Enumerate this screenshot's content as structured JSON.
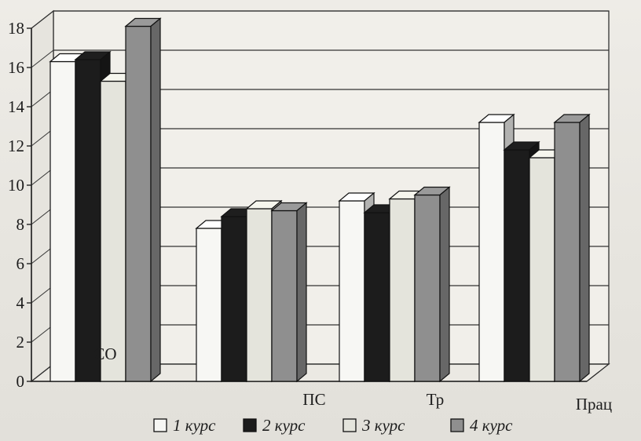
{
  "chart_data": {
    "type": "bar",
    "categories": [
      "СО",
      "ПС",
      "Тр",
      "Прац"
    ],
    "series": [
      {
        "name": "1 курс",
        "values": [
          16.3,
          7.8,
          9.2,
          13.2
        ],
        "color": "#f7f7f4"
      },
      {
        "name": "2 курс",
        "values": [
          16.4,
          8.4,
          8.6,
          11.8
        ],
        "color": "#1c1c1c"
      },
      {
        "name": "3 курс",
        "values": [
          15.3,
          8.8,
          9.3,
          11.4
        ],
        "color": "#e4e4dc"
      },
      {
        "name": "4 курс",
        "values": [
          18.1,
          8.7,
          9.5,
          13.2
        ],
        "color": "#8f8f8f"
      }
    ],
    "y_ticks": [
      "0",
      "2",
      "4",
      "6",
      "8",
      "10",
      "12",
      "14",
      "16",
      "18"
    ],
    "ylim": [
      0,
      18
    ],
    "grid": true,
    "legend_position": "bottom",
    "three_d": true
  }
}
